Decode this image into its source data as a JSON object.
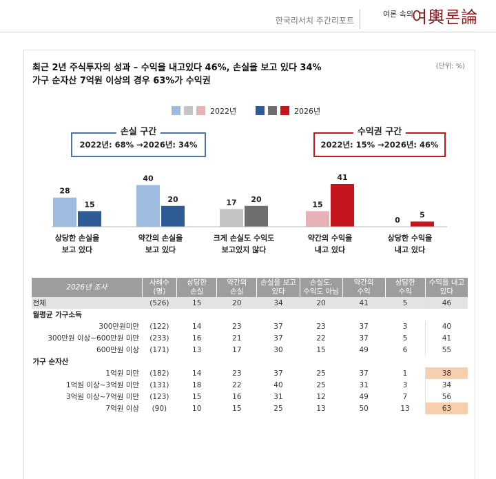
{
  "header": {
    "report_name": "한국리서치 주간리포트",
    "logo_small": "여론 속의",
    "logo_big": "여輿론論"
  },
  "title_line1": "최근 2년 주식투자의 성과 – 수익을 내고있다 46%, 손실을 보고 있다 34%",
  "title_line2": "가구 순자산 7억원 이상의 경우 63%가 수익권",
  "unit": "(단위: %)",
  "legend": {
    "y2022": "2022년",
    "y2026": "2026년"
  },
  "loss_box": {
    "caption": "손실 구간",
    "text": "2022년: 68% →2026년: 34%"
  },
  "gain_box": {
    "caption": "수익권 구간",
    "text": "2022년: 15% →2026년: 46%"
  },
  "colors": {
    "c2022": [
      "#9dbcdf",
      "#c4c4c4",
      "#e8b1b5"
    ],
    "c2026": [
      "#2f5c97",
      "#6e6e6e",
      "#c4161c"
    ],
    "loss_border": "#4b73a8",
    "gain_border": "#c4161c",
    "highlight": "#f8cfae"
  },
  "chart_data": {
    "type": "bar",
    "categories": [
      [
        "상당한 손실을",
        "보고 있다"
      ],
      [
        "약간의 손실을",
        "보고 있다"
      ],
      [
        "크게 손실도 수익도",
        "보고있지 않다"
      ],
      [
        "약간의 수익을",
        "내고 있다"
      ],
      [
        "상당한 수익을",
        "내고 있다"
      ]
    ],
    "series": [
      {
        "name": "2022년",
        "values": [
          28,
          40,
          17,
          15,
          0
        ]
      },
      {
        "name": "2026년",
        "values": [
          15,
          20,
          20,
          41,
          5
        ]
      }
    ],
    "ylim": [
      0,
      45
    ]
  },
  "table": {
    "survey_label": "2026년 조사",
    "headers": [
      "사례수\n(명)",
      "상당한\n손실",
      "약간의\n손실",
      "손실을 보고\n있다",
      "손실도,\n수익도 아님",
      "약간의\n수익",
      "상당한\n수익",
      "수익을 내고\n있다"
    ],
    "rows": [
      {
        "type": "total",
        "label": "전체",
        "n": "(526)",
        "v": [
          "15",
          "20",
          "34",
          "20",
          "41",
          "5",
          "46"
        ]
      },
      {
        "type": "group",
        "label": "월평균 가구소득"
      },
      {
        "type": "row",
        "label": "300만원미만",
        "n": "(122)",
        "v": [
          "14",
          "23",
          "37",
          "23",
          "37",
          "3",
          "40"
        ]
      },
      {
        "type": "row",
        "label": "300만원 이상~600만원 미만",
        "n": "(233)",
        "v": [
          "16",
          "21",
          "37",
          "22",
          "37",
          "5",
          "41"
        ]
      },
      {
        "type": "row",
        "label": "600만원 이상",
        "n": "(171)",
        "v": [
          "13",
          "17",
          "30",
          "15",
          "49",
          "6",
          "55"
        ]
      },
      {
        "type": "group",
        "label": "가구 순자산"
      },
      {
        "type": "row",
        "label": "1억원 미만",
        "n": "(182)",
        "v": [
          "14",
          "23",
          "37",
          "25",
          "37",
          "1",
          "38"
        ],
        "hl": true
      },
      {
        "type": "row",
        "label": "1억원 이상~3억원 미만",
        "n": "(131)",
        "v": [
          "18",
          "22",
          "40",
          "25",
          "31",
          "3",
          "34"
        ]
      },
      {
        "type": "row",
        "label": "3억원 이상~7억원 미만",
        "n": "(123)",
        "v": [
          "15",
          "16",
          "31",
          "12",
          "49",
          "7",
          "56"
        ]
      },
      {
        "type": "row",
        "label": "7억원 이상",
        "n": "(90)",
        "v": [
          "10",
          "15",
          "25",
          "13",
          "50",
          "13",
          "63"
        ],
        "hl": true
      }
    ]
  }
}
